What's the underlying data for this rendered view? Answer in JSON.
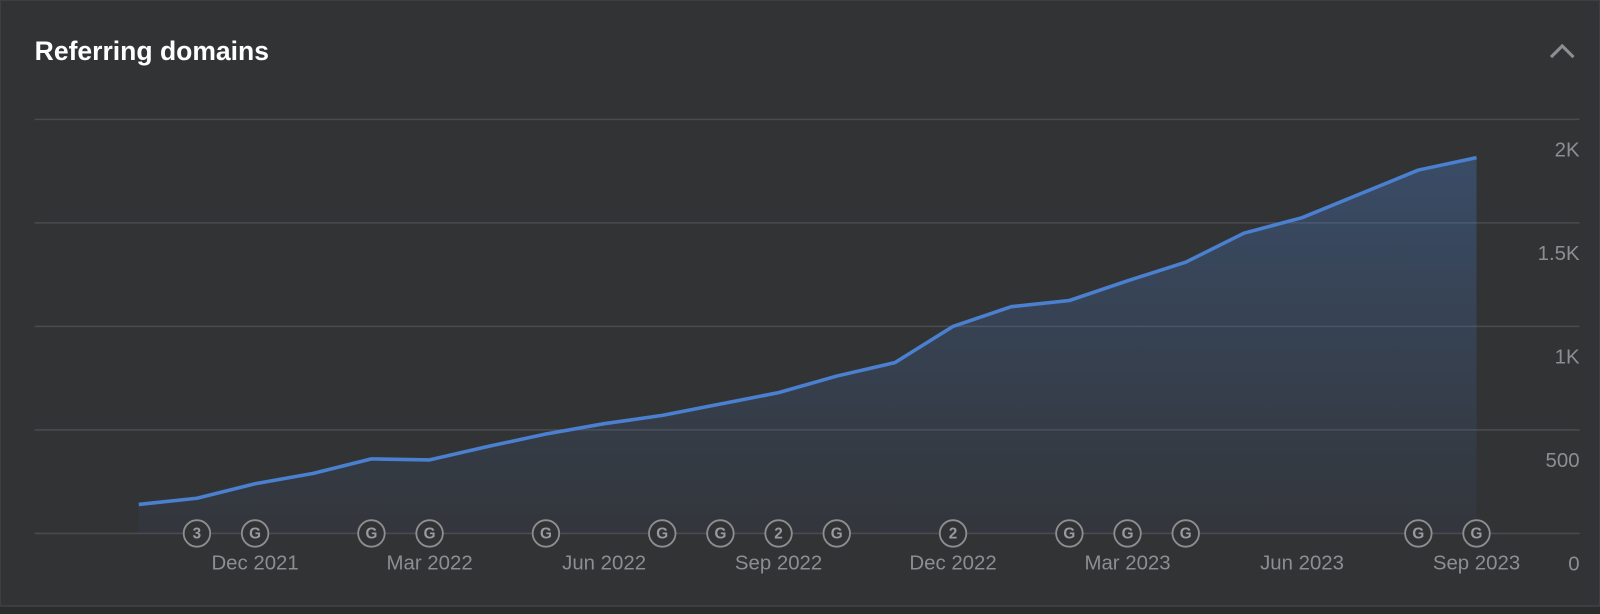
{
  "chart_data": {
    "type": "area",
    "title": "Referring domains",
    "categories": [
      null,
      null,
      "Dec 2021",
      null,
      null,
      "Mar 2022",
      null,
      null,
      "Jun 2022",
      null,
      null,
      "Sep 2022",
      null,
      null,
      "Dec 2022",
      null,
      null,
      "Mar 2023",
      null,
      null,
      "Jun 2023",
      null,
      null,
      "Sep 2023"
    ],
    "values": [
      140,
      170,
      240,
      290,
      360,
      355,
      420,
      480,
      530,
      570,
      625,
      680,
      760,
      825,
      1000,
      1095,
      1125,
      1220,
      1310,
      1450,
      1525,
      1640,
      1755,
      1815
    ],
    "event_labels": [
      null,
      "3",
      "G",
      null,
      "G",
      "G",
      null,
      "G",
      null,
      "G",
      "G",
      "2",
      "G",
      null,
      "2",
      null,
      "G",
      "G",
      "G",
      null,
      null,
      null,
      "G",
      "G"
    ],
    "color": "#4a80cf",
    "ylim": [
      0,
      2000
    ],
    "yticks": [
      0,
      500,
      {
        "value": 1000,
        "label": "1K"
      },
      {
        "value": 1500,
        "label": "1.5K"
      },
      {
        "value": 2000,
        "label": "2K"
      }
    ],
    "grid": true
  }
}
